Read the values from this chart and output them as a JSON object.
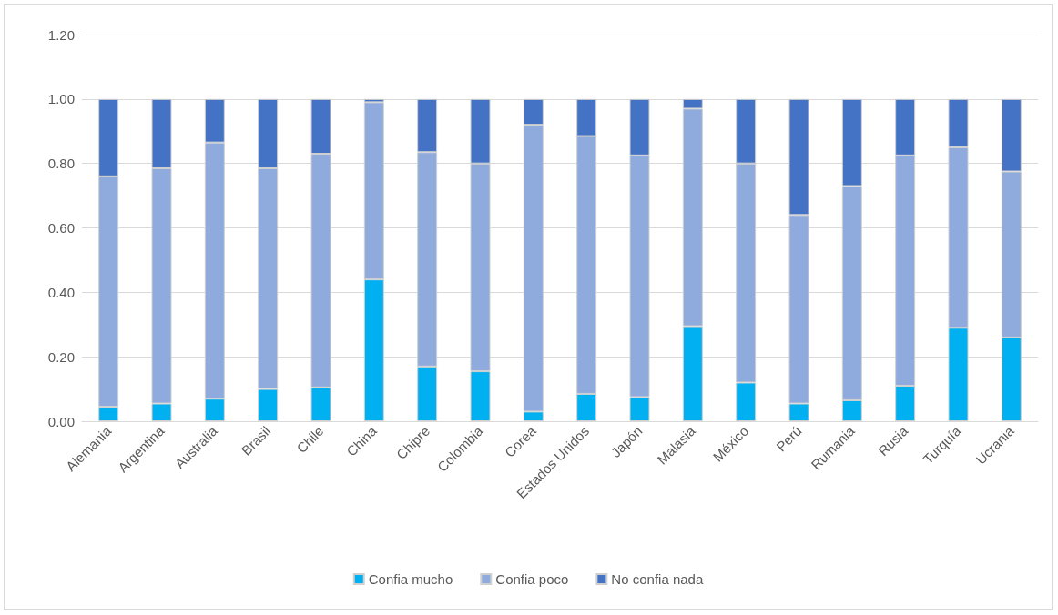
{
  "chart_data": {
    "type": "bar",
    "stacked": true,
    "categories": [
      "Alemania",
      "Argentina",
      "Australia",
      "Brasil",
      "Chile",
      "China",
      "Chipre",
      "Colombia",
      "Corea",
      "Estados Unidos",
      "Japón",
      "Malasia",
      "México",
      "Perú",
      "Rumania",
      "Rusia",
      "Turquía",
      "Ucrania"
    ],
    "series": [
      {
        "name": "Confia mucho",
        "color": "#00b0f0",
        "values": [
          0.045,
          0.055,
          0.07,
          0.1,
          0.105,
          0.44,
          0.17,
          0.155,
          0.03,
          0.085,
          0.075,
          0.295,
          0.12,
          0.055,
          0.065,
          0.11,
          0.29,
          0.26
        ]
      },
      {
        "name": "Confia poco",
        "color": "#8faadc",
        "values": [
          0.715,
          0.73,
          0.795,
          0.685,
          0.725,
          0.55,
          0.665,
          0.645,
          0.89,
          0.8,
          0.75,
          0.675,
          0.68,
          0.585,
          0.665,
          0.715,
          0.56,
          0.515
        ]
      },
      {
        "name": "No confia nada",
        "color": "#4472c4",
        "values": [
          0.24,
          0.215,
          0.135,
          0.215,
          0.17,
          0.01,
          0.165,
          0.2,
          0.08,
          0.115,
          0.175,
          0.03,
          0.2,
          0.36,
          0.27,
          0.175,
          0.15,
          0.225
        ]
      }
    ],
    "ylim": [
      0,
      1.2
    ],
    "yticks": [
      {
        "value": 0,
        "label": "0.00"
      },
      {
        "value": 0.2,
        "label": "0.20"
      },
      {
        "value": 0.4,
        "label": "0.40"
      },
      {
        "value": 0.6,
        "label": "0.60"
      },
      {
        "value": 0.8,
        "label": "0.80"
      },
      {
        "value": 1,
        "label": "1.00"
      },
      {
        "value": 1.2,
        "label": "1.20"
      }
    ],
    "grid": "y",
    "legend": "bottom"
  }
}
